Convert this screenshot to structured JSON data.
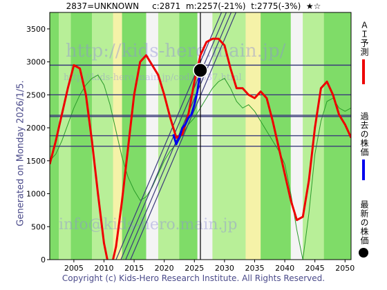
{
  "header": {
    "code": "2837=UNKNOWN",
    "current": "c:2871",
    "model": "m:2257(-21%)",
    "target": "t:2775(-3%)",
    "rating": "★☆"
  },
  "side_label": "Generated on Monday 2026/1/5.",
  "footer": "Copyright (c) Kids-Hero Research Institute. All Rights Reserved.",
  "watermarks": [
    "http://kids-hero.main.jp/",
    "http://kids-hero.main.jp/code2837.html",
    "info@kids-hero.main.jp"
  ],
  "legend": [
    {
      "label": "ＡＩ予測",
      "color": "#ee0000"
    },
    {
      "label": "過去の株価",
      "color": "#0000ee"
    },
    {
      "label": "最新の株価",
      "color": "#000000"
    }
  ],
  "colors": {
    "prediction": "#ee0000",
    "past_price": "#0000ee",
    "latest": "#000000",
    "band_green": "#7fdc68",
    "band_light_green": "#b8ef98",
    "band_yellow": "#f5f2a8",
    "band_white": "#f4f4f4",
    "thin_green": "#2a9a2a",
    "hline": "#3a3a7a"
  },
  "chart_data": {
    "type": "line",
    "title": "",
    "xlabel": "",
    "ylabel": "",
    "xlim": [
      2001,
      2051
    ],
    "ylim": [
      0,
      3750
    ],
    "x_ticks": [
      "2005",
      "2010",
      "2015",
      "2020",
      "2025",
      "2030",
      "2035",
      "2040",
      "2045",
      "2050"
    ],
    "y_ticks": [
      "0",
      "500",
      "1000",
      "1500",
      "2000",
      "2500",
      "3000",
      "3500"
    ],
    "horizontal_levels": [
      2950,
      2500,
      2190,
      2170,
      1880,
      1720
    ],
    "latest_point": {
      "x": 2026.0,
      "y": 2871
    },
    "latest_vline_x": 2026.0,
    "series": [
      {
        "name": "ＡＩ予測",
        "x": [
          2001,
          2002,
          2003,
          2004,
          2005,
          2006,
          2007,
          2008,
          2009,
          2010,
          2011,
          2012,
          2013,
          2014,
          2015,
          2016,
          2017,
          2018,
          2019,
          2020,
          2021,
          2022,
          2023,
          2024,
          2025,
          2026,
          2027,
          2028,
          2029,
          2030,
          2031,
          2032,
          2033,
          2034,
          2035,
          2036,
          2037,
          2038,
          2039,
          2040,
          2041,
          2042,
          2043,
          2044,
          2045,
          2046,
          2047,
          2048,
          2049,
          2050,
          2051
        ],
        "y": [
          1450,
          1800,
          2200,
          2600,
          2950,
          2900,
          2500,
          1800,
          1000,
          250,
          -200,
          200,
          900,
          1700,
          2500,
          3000,
          3100,
          2950,
          2800,
          2500,
          2150,
          1850,
          1900,
          2200,
          2700,
          3100,
          3300,
          3350,
          3350,
          3250,
          2900,
          2600,
          2600,
          2500,
          2450,
          2550,
          2450,
          2100,
          1700,
          1300,
          900,
          600,
          650,
          1200,
          2000,
          2600,
          2700,
          2500,
          2200,
          2050,
          1850
        ]
      },
      {
        "name": "過去の株価",
        "x": [
          2021.5,
          2022.0,
          2022.5,
          2023.0,
          2023.5,
          2024.0,
          2024.5,
          2025.0,
          2025.5,
          2026.0
        ],
        "y": [
          1900,
          1750,
          1850,
          2000,
          2050,
          2150,
          2200,
          2350,
          2550,
          2871
        ]
      },
      {
        "name": "",
        "x": [
          2001,
          2002,
          2003,
          2004,
          2005,
          2006,
          2007,
          2008,
          2009,
          2010,
          2011,
          2012,
          2013,
          2014,
          2015,
          2016,
          2017,
          2018,
          2019,
          2020,
          2021,
          2022,
          2023,
          2024,
          2025,
          2026,
          2027,
          2028,
          2029,
          2030,
          2031,
          2032,
          2033,
          2034,
          2035,
          2036,
          2037,
          2038,
          2039,
          2040,
          2041,
          2042,
          2043,
          2044,
          2045,
          2046,
          2047,
          2048,
          2049,
          2050,
          2051
        ],
        "y": [
          1500,
          1600,
          1800,
          2050,
          2300,
          2500,
          2650,
          2750,
          2800,
          2650,
          2350,
          1950,
          1550,
          1250,
          1050,
          900,
          950,
          1100,
          1300,
          1500,
          1650,
          1750,
          1900,
          2050,
          2150,
          2300,
          2450,
          2600,
          2700,
          2750,
          2600,
          2400,
          2300,
          2350,
          2250,
          2100,
          1950,
          1800,
          1650,
          1450,
          1000,
          450,
          0,
          700,
          1600,
          2100,
          2400,
          2450,
          2300,
          2250,
          2300
        ]
      }
    ],
    "trend_lines": [
      {
        "x1": 2012.0,
        "y1": 0,
        "x2": 2029.5,
        "y2": 3750
      },
      {
        "x1": 2012.8,
        "y1": 0,
        "x2": 2030.3,
        "y2": 3750
      },
      {
        "x1": 2013.6,
        "y1": 0,
        "x2": 2031.1,
        "y2": 3750
      },
      {
        "x1": 2014.4,
        "y1": 0,
        "x2": 2031.9,
        "y2": 3750
      }
    ],
    "bands": [
      {
        "x0": 2001.0,
        "x1": 2002.5,
        "color": "band_green"
      },
      {
        "x0": 2002.5,
        "x1": 2004.5,
        "color": "band_light_green"
      },
      {
        "x0": 2004.5,
        "x1": 2008.0,
        "color": "band_green"
      },
      {
        "x0": 2008.0,
        "x1": 2011.5,
        "color": "band_light_green"
      },
      {
        "x0": 2011.5,
        "x1": 2013.0,
        "color": "band_yellow"
      },
      {
        "x0": 2013.0,
        "x1": 2017.0,
        "color": "band_green"
      },
      {
        "x0": 2017.0,
        "x1": 2019.0,
        "color": "band_white"
      },
      {
        "x0": 2019.0,
        "x1": 2022.5,
        "color": "band_light_green"
      },
      {
        "x0": 2022.5,
        "x1": 2025.5,
        "color": "band_green"
      },
      {
        "x0": 2025.5,
        "x1": 2028.0,
        "color": "band_white"
      },
      {
        "x0": 2028.0,
        "x1": 2033.5,
        "color": "band_light_green"
      },
      {
        "x0": 2033.5,
        "x1": 2036.0,
        "color": "band_yellow"
      },
      {
        "x0": 2036.0,
        "x1": 2041.0,
        "color": "band_green"
      },
      {
        "x0": 2041.0,
        "x1": 2043.0,
        "color": "band_white"
      },
      {
        "x0": 2043.0,
        "x1": 2046.5,
        "color": "band_light_green"
      },
      {
        "x0": 2046.5,
        "x1": 2051.0,
        "color": "band_green"
      }
    ]
  }
}
